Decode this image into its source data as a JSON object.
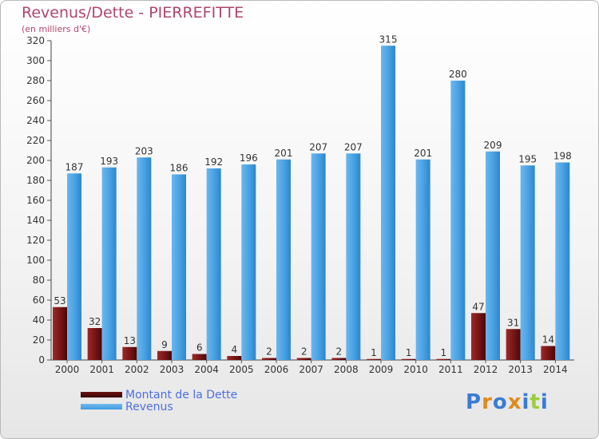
{
  "title": "Revenus/Dette - PIERREFITTE",
  "subtitle": "(en milliers d'€)",
  "colors": {
    "title": "#b0466a",
    "dette": "#7a1a1a",
    "revenus": "#3f9be0",
    "axis": "#444444",
    "grid": "#d0d0d0",
    "legend_text": "#4d6fe0"
  },
  "legend": [
    {
      "label": "Montant de la Dette",
      "color": "#6b1010"
    },
    {
      "label": "Revenus",
      "color": "#3f9be0"
    }
  ],
  "logo": {
    "text": "Proxiti",
    "letter_colors": [
      "#3a7bd5",
      "#e08a1e",
      "#3a7bd5",
      "#e08a1e",
      "#3a7bd5",
      "#9ccc3c",
      "#3a7bd5"
    ]
  },
  "chart_data": {
    "type": "bar",
    "categories": [
      "2000",
      "2001",
      "2002",
      "2003",
      "2004",
      "2005",
      "2006",
      "2007",
      "2008",
      "2009",
      "2010",
      "2011",
      "2012",
      "2013",
      "2014"
    ],
    "series": [
      {
        "name": "Montant de la Dette",
        "values": [
          53,
          32,
          13,
          9,
          6,
          4,
          2,
          2,
          2,
          1,
          1,
          1,
          47,
          31,
          14
        ]
      },
      {
        "name": "Revenus",
        "values": [
          187,
          193,
          203,
          186,
          192,
          196,
          201,
          207,
          207,
          315,
          201,
          280,
          209,
          195,
          198
        ]
      }
    ],
    "ylim": [
      0,
      320
    ],
    "yticks": [
      0,
      20,
      40,
      60,
      80,
      100,
      120,
      140,
      160,
      180,
      200,
      220,
      240,
      260,
      280,
      300,
      320
    ],
    "grid": false,
    "data_labels": true,
    "legend_position": "bottom-left"
  }
}
